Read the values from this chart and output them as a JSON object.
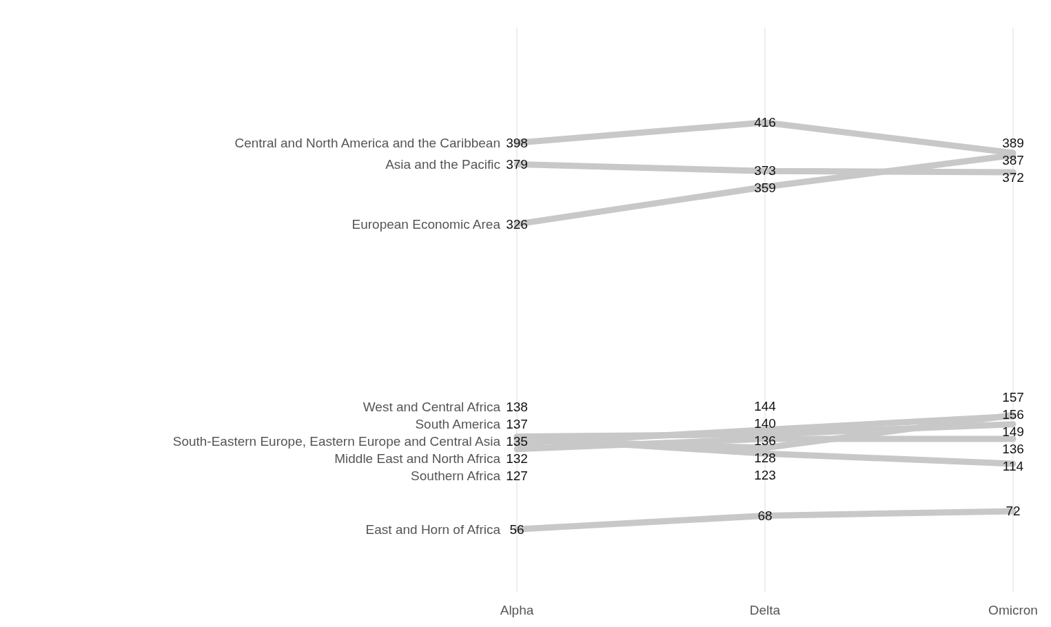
{
  "chart_data": {
    "type": "line",
    "categories": [
      "Alpha",
      "Delta",
      "Omicron"
    ],
    "series": [
      {
        "name": "Central and North America and the Caribbean",
        "color": "#c8c8c8",
        "values": [
          398,
          416,
          389
        ]
      },
      {
        "name": "Asia and the Pacific",
        "color": "#c8c8c8",
        "values": [
          379,
          373,
          372
        ]
      },
      {
        "name": "European Economic Area",
        "color": "#c8c8c8",
        "values": [
          326,
          359,
          387
        ]
      },
      {
        "name": "West and Central Africa",
        "color": "#c8c8c8",
        "values": [
          138,
          140,
          149
        ]
      },
      {
        "name": "South America",
        "color": "#c8c8c8",
        "values": [
          137,
          123,
          114
        ]
      },
      {
        "name": "South-Eastern Europe, Eastern Europe and Central Asia",
        "color": "#c8c8c8",
        "values": [
          135,
          128,
          157
        ]
      },
      {
        "name": "Middle East and North Africa",
        "color": "#c8c8c8",
        "values": [
          132,
          144,
          156
        ]
      },
      {
        "name": "Southern Africa",
        "color": "#c8c8c8",
        "values": [
          127,
          136,
          136
        ]
      },
      {
        "name": "East and Horn of Africa",
        "color": "#c8c8c8",
        "values": [
          56,
          68,
          72
        ]
      }
    ],
    "data_labels": true,
    "marker": "none",
    "grid": "x"
  }
}
